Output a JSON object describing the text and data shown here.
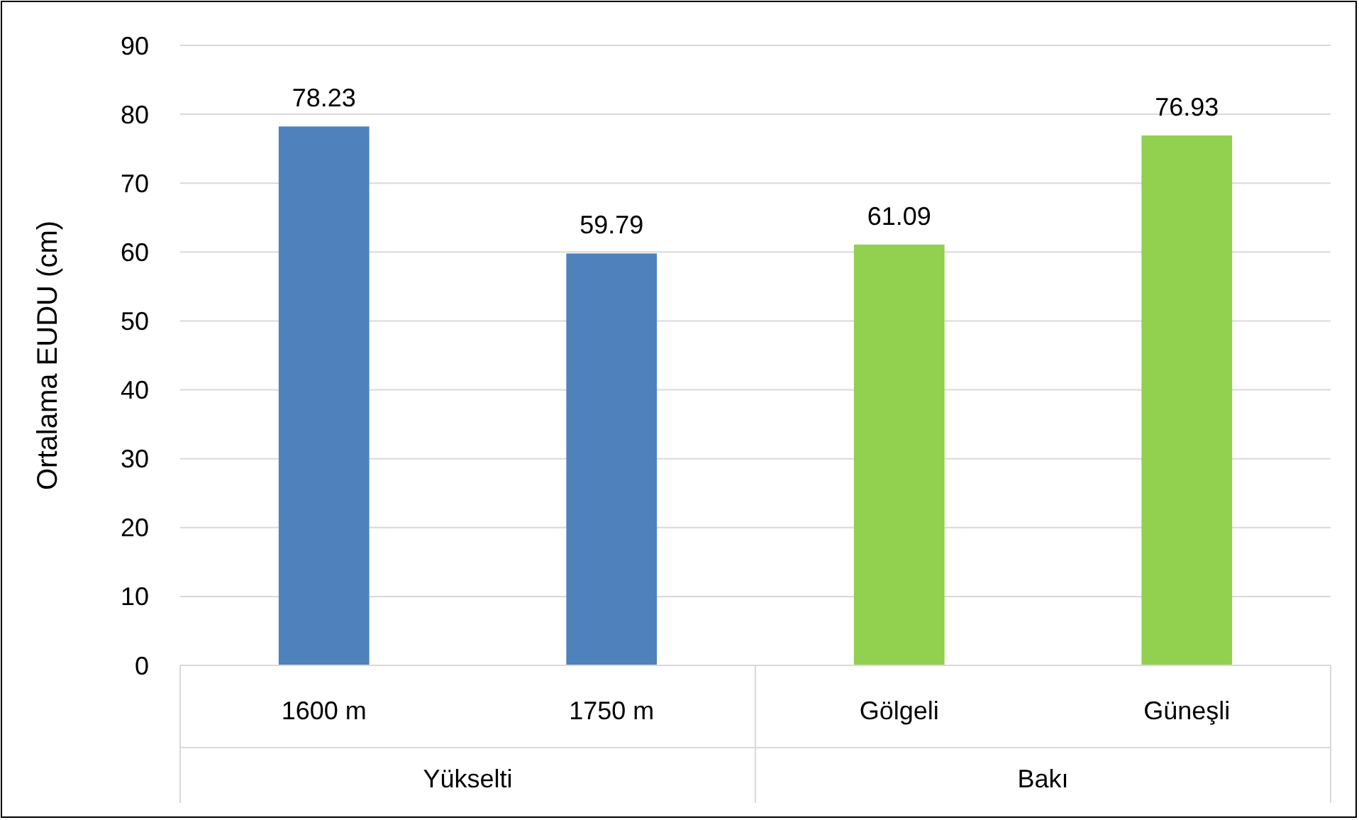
{
  "chart_data": {
    "type": "bar",
    "ylabel": "Ortalama EUDU (cm)",
    "categories": [
      "1600 m",
      "1750 m",
      "Gölgeli",
      "Güneşli"
    ],
    "values": [
      78.23,
      59.79,
      61.09,
      76.93
    ],
    "colors": [
      "#4f81bd",
      "#4f81bd",
      "#92d050",
      "#92d050"
    ],
    "annotations": [
      "Yükselti",
      "Bakı"
    ],
    "ylim": [
      0,
      90
    ],
    "yticks": [
      0,
      10,
      20,
      30,
      40,
      50,
      60,
      70,
      80,
      90
    ],
    "grid": "y",
    "data_labels": true
  }
}
